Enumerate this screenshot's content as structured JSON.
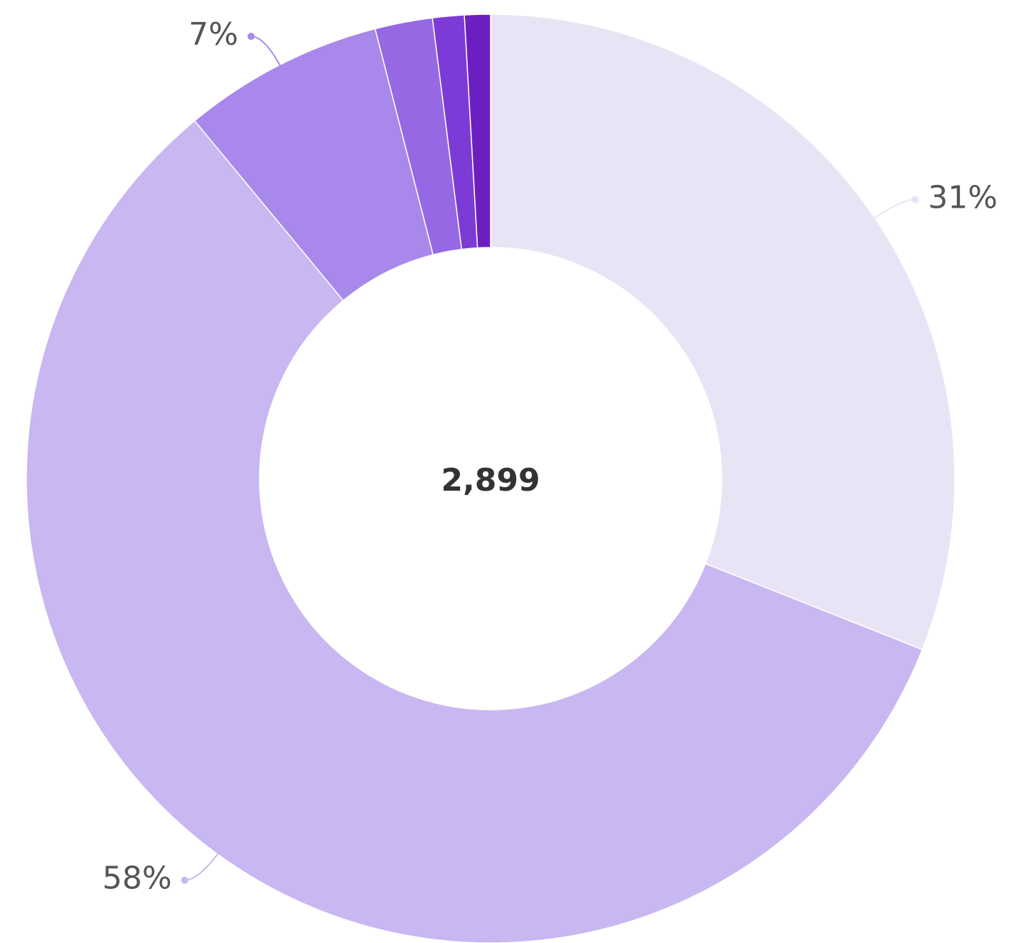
{
  "chart_data": {
    "type": "donut",
    "center_label": "2,899",
    "categories": [
      null,
      null,
      null,
      null,
      null,
      null
    ],
    "values": [
      31,
      58,
      7,
      2,
      1.1,
      0.9
    ],
    "value_labels": [
      "31%",
      "58%",
      "7%",
      null,
      null,
      null
    ],
    "colors": [
      "#e9e4f5",
      "#c8b7f1",
      "#a888ea",
      "#9668e3",
      "#7c3ad6",
      "#6c1fc0"
    ]
  }
}
